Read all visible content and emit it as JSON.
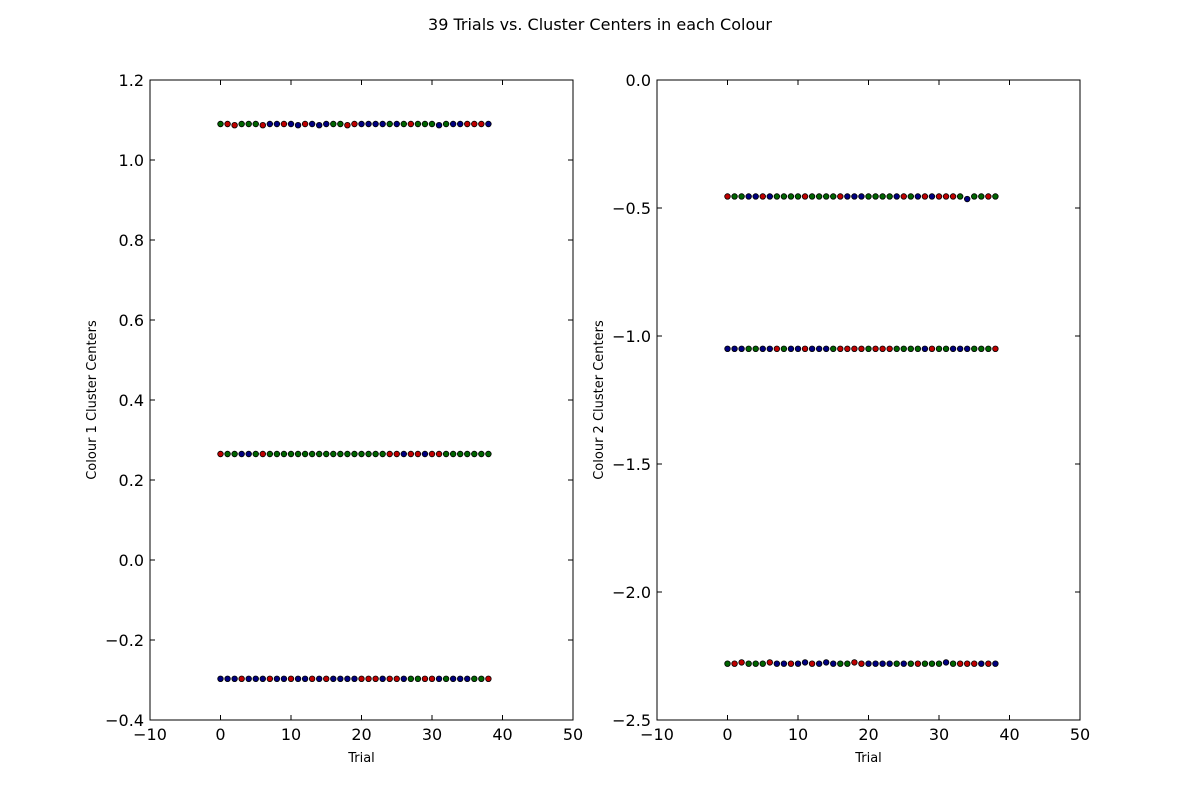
{
  "figure": {
    "title": "39 Trials vs. Cluster Centers in each Colour"
  },
  "colors": {
    "red": "#bf0000",
    "green": "#006400",
    "blue": "#00007f",
    "edge": "#000000"
  },
  "chart_data": [
    {
      "type": "scatter",
      "title": "",
      "xlabel": "Trial",
      "ylabel": "Colour 1 Cluster Centers",
      "xlim": [
        -10,
        50
      ],
      "ylim": [
        -0.4,
        1.2
      ],
      "xticks": [
        -10,
        0,
        10,
        20,
        30,
        40,
        50
      ],
      "yticks": [
        -0.4,
        -0.2,
        0.0,
        0.2,
        0.4,
        0.6,
        0.8,
        1.0,
        1.2
      ],
      "xtick_labels": [
        "−10",
        "0",
        "10",
        "20",
        "30",
        "40",
        "50"
      ],
      "ytick_labels": [
        "−0.4",
        "−0.2",
        "0.0",
        "0.2",
        "0.4",
        "0.6",
        "0.8",
        "1.0",
        "1.2"
      ],
      "x": [
        0,
        1,
        2,
        3,
        4,
        5,
        6,
        7,
        8,
        9,
        10,
        11,
        12,
        13,
        14,
        15,
        16,
        17,
        18,
        19,
        20,
        21,
        22,
        23,
        24,
        25,
        26,
        27,
        28,
        29,
        30,
        31,
        32,
        33,
        34,
        35,
        36,
        37,
        38
      ],
      "series": [
        {
          "color_names": [
            "green",
            "red",
            "red",
            "green",
            "green",
            "green",
            "red",
            "blue",
            "blue",
            "red",
            "blue",
            "blue",
            "red",
            "blue",
            "blue",
            "blue",
            "green",
            "green",
            "red",
            "red",
            "blue",
            "blue",
            "blue",
            "blue",
            "green",
            "blue",
            "green",
            "red",
            "green",
            "green",
            "green",
            "blue",
            "green",
            "blue",
            "blue",
            "red",
            "red",
            "red",
            "blue"
          ],
          "values": [
            1.09,
            1.09,
            1.087,
            1.09,
            1.09,
            1.09,
            1.087,
            1.09,
            1.09,
            1.09,
            1.09,
            1.087,
            1.09,
            1.09,
            1.087,
            1.09,
            1.09,
            1.09,
            1.087,
            1.09,
            1.09,
            1.09,
            1.09,
            1.09,
            1.09,
            1.09,
            1.09,
            1.09,
            1.09,
            1.09,
            1.09,
            1.087,
            1.09,
            1.09,
            1.09,
            1.09,
            1.09,
            1.09,
            1.09
          ]
        },
        {
          "color_names": [
            "red",
            "green",
            "green",
            "blue",
            "blue",
            "green",
            "red",
            "green",
            "green",
            "green",
            "green",
            "green",
            "green",
            "green",
            "green",
            "green",
            "green",
            "green",
            "green",
            "green",
            "green",
            "green",
            "green",
            "green",
            "red",
            "red",
            "blue",
            "red",
            "red",
            "blue",
            "red",
            "red",
            "green",
            "green",
            "green",
            "green",
            "green",
            "green",
            "green"
          ],
          "values": [
            0.265,
            0.265,
            0.265,
            0.265,
            0.265,
            0.265,
            0.265,
            0.265,
            0.265,
            0.265,
            0.265,
            0.265,
            0.265,
            0.265,
            0.265,
            0.265,
            0.265,
            0.265,
            0.265,
            0.265,
            0.265,
            0.265,
            0.265,
            0.265,
            0.265,
            0.265,
            0.265,
            0.265,
            0.265,
            0.265,
            0.265,
            0.265,
            0.265,
            0.265,
            0.265,
            0.265,
            0.265,
            0.265,
            0.265
          ]
        },
        {
          "color_names": [
            "blue",
            "blue",
            "blue",
            "red",
            "blue",
            "blue",
            "blue",
            "red",
            "blue",
            "blue",
            "red",
            "blue",
            "blue",
            "red",
            "blue",
            "red",
            "blue",
            "blue",
            "blue",
            "blue",
            "red",
            "red",
            "red",
            "blue",
            "red",
            "red",
            "blue",
            "green",
            "green",
            "red",
            "red",
            "blue",
            "green",
            "blue",
            "blue",
            "blue",
            "green",
            "green",
            "red"
          ],
          "values": [
            -0.297,
            -0.297,
            -0.297,
            -0.297,
            -0.297,
            -0.297,
            -0.297,
            -0.297,
            -0.297,
            -0.297,
            -0.297,
            -0.297,
            -0.297,
            -0.297,
            -0.297,
            -0.297,
            -0.297,
            -0.297,
            -0.297,
            -0.297,
            -0.297,
            -0.297,
            -0.297,
            -0.297,
            -0.297,
            -0.297,
            -0.297,
            -0.297,
            -0.297,
            -0.297,
            -0.297,
            -0.297,
            -0.297,
            -0.297,
            -0.297,
            -0.297,
            -0.297,
            -0.297,
            -0.297
          ]
        }
      ]
    },
    {
      "type": "scatter",
      "title": "",
      "xlabel": "Trial",
      "ylabel": "Colour 2 Cluster Centers",
      "xlim": [
        -10,
        50
      ],
      "ylim": [
        -2.5,
        0.0
      ],
      "xticks": [
        -10,
        0,
        10,
        20,
        30,
        40,
        50
      ],
      "yticks": [
        -2.5,
        -2.0,
        -1.5,
        -1.0,
        -0.5,
        0.0
      ],
      "xtick_labels": [
        "−10",
        "0",
        "10",
        "20",
        "30",
        "40",
        "50"
      ],
      "ytick_labels": [
        "−2.5",
        "−2.0",
        "−1.5",
        "−1.0",
        "−0.5",
        "0.0"
      ],
      "x": [
        0,
        1,
        2,
        3,
        4,
        5,
        6,
        7,
        8,
        9,
        10,
        11,
        12,
        13,
        14,
        15,
        16,
        17,
        18,
        19,
        20,
        21,
        22,
        23,
        24,
        25,
        26,
        27,
        28,
        29,
        30,
        31,
        32,
        33,
        34,
        35,
        36,
        37,
        38
      ],
      "series": [
        {
          "color_names": [
            "red",
            "green",
            "green",
            "blue",
            "blue",
            "red",
            "blue",
            "green",
            "green",
            "green",
            "green",
            "red",
            "green",
            "green",
            "green",
            "green",
            "red",
            "blue",
            "blue",
            "blue",
            "green",
            "green",
            "green",
            "green",
            "blue",
            "red",
            "green",
            "blue",
            "red",
            "blue",
            "red",
            "red",
            "red",
            "green",
            "blue",
            "green",
            "green",
            "red",
            "green"
          ],
          "values": [
            -0.455,
            -0.455,
            -0.455,
            -0.455,
            -0.455,
            -0.455,
            -0.455,
            -0.455,
            -0.455,
            -0.455,
            -0.455,
            -0.455,
            -0.455,
            -0.455,
            -0.455,
            -0.455,
            -0.455,
            -0.455,
            -0.455,
            -0.455,
            -0.455,
            -0.455,
            -0.455,
            -0.455,
            -0.455,
            -0.455,
            -0.455,
            -0.455,
            -0.455,
            -0.455,
            -0.455,
            -0.455,
            -0.455,
            -0.455,
            -0.465,
            -0.455,
            -0.455,
            -0.455,
            -0.455
          ]
        },
        {
          "color_names": [
            "blue",
            "blue",
            "blue",
            "green",
            "green",
            "blue",
            "blue",
            "red",
            "green",
            "blue",
            "blue",
            "red",
            "blue",
            "blue",
            "blue",
            "green",
            "red",
            "red",
            "red",
            "red",
            "green",
            "red",
            "red",
            "red",
            "green",
            "green",
            "green",
            "green",
            "blue",
            "red",
            "green",
            "green",
            "blue",
            "blue",
            "blue",
            "green",
            "green",
            "green",
            "red"
          ],
          "values": [
            -1.05,
            -1.05,
            -1.05,
            -1.05,
            -1.05,
            -1.05,
            -1.05,
            -1.05,
            -1.05,
            -1.05,
            -1.05,
            -1.05,
            -1.05,
            -1.05,
            -1.05,
            -1.05,
            -1.05,
            -1.05,
            -1.05,
            -1.05,
            -1.05,
            -1.05,
            -1.05,
            -1.05,
            -1.05,
            -1.05,
            -1.05,
            -1.05,
            -1.05,
            -1.05,
            -1.05,
            -1.05,
            -1.05,
            -1.05,
            -1.05,
            -1.05,
            -1.05,
            -1.05,
            -1.05
          ]
        },
        {
          "color_names": [
            "green",
            "red",
            "red",
            "green",
            "green",
            "green",
            "red",
            "blue",
            "blue",
            "red",
            "blue",
            "blue",
            "red",
            "blue",
            "blue",
            "blue",
            "green",
            "green",
            "red",
            "red",
            "blue",
            "blue",
            "blue",
            "blue",
            "green",
            "blue",
            "green",
            "red",
            "green",
            "green",
            "green",
            "blue",
            "green",
            "red",
            "red",
            "red",
            "blue",
            "red",
            "blue"
          ],
          "values": [
            -2.28,
            -2.28,
            -2.275,
            -2.28,
            -2.28,
            -2.28,
            -2.275,
            -2.28,
            -2.28,
            -2.28,
            -2.28,
            -2.275,
            -2.28,
            -2.28,
            -2.275,
            -2.28,
            -2.28,
            -2.28,
            -2.275,
            -2.28,
            -2.28,
            -2.28,
            -2.28,
            -2.28,
            -2.28,
            -2.28,
            -2.28,
            -2.28,
            -2.28,
            -2.28,
            -2.28,
            -2.275,
            -2.28,
            -2.28,
            -2.28,
            -2.28,
            -2.28,
            -2.28,
            -2.28
          ]
        }
      ]
    }
  ]
}
